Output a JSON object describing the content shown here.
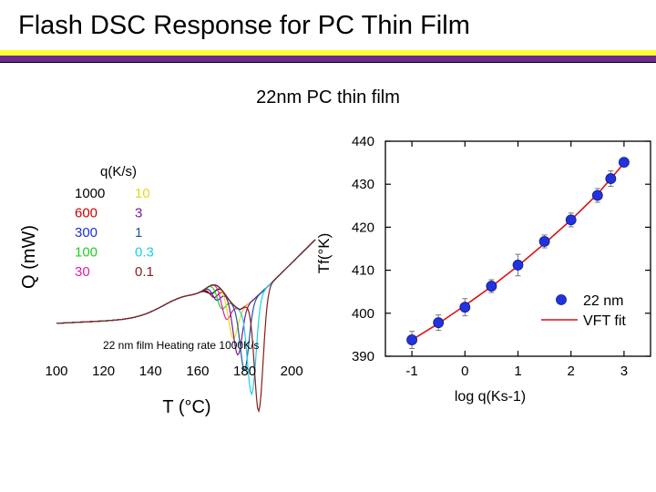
{
  "slide": {
    "title": "Flash DSC Response for PC Thin Film",
    "subtitle": "22nm PC thin film",
    "stripe_colors": [
      "#ffff33",
      "#6b2c91",
      "#000000"
    ]
  },
  "chart_data": [
    {
      "type": "line",
      "ylabel": "Q (mW)",
      "xlabel": "T (°C)",
      "xlim": [
        100,
        210
      ],
      "x_ticks": [
        "100",
        "120",
        "140",
        "160",
        "180",
        "200"
      ],
      "y_ticks": [],
      "legend_title": "q(K/s)",
      "legend": [
        {
          "name": "1000",
          "color": "#000000"
        },
        {
          "name": "600",
          "color": "#cc0000"
        },
        {
          "name": "300",
          "color": "#1a33cc"
        },
        {
          "name": "100",
          "color": "#22cc22"
        },
        {
          "name": "30",
          "color": "#e61aa3"
        },
        {
          "name": "10",
          "color": "#e6d81a"
        },
        {
          "name": "3",
          "color": "#7a1a99"
        },
        {
          "name": "1",
          "color": "#1a5a99"
        },
        {
          "name": "0.3",
          "color": "#1ad0e6"
        },
        {
          "name": "0.1",
          "color": "#8b1a1a"
        }
      ],
      "series": [
        {
          "name": "1000",
          "dip_T": 166,
          "depth": 0.04
        },
        {
          "name": "600",
          "dip_T": 167,
          "depth": 0.06
        },
        {
          "name": "300",
          "dip_T": 168,
          "depth": 0.07
        },
        {
          "name": "100",
          "dip_T": 170,
          "depth": 0.09
        },
        {
          "name": "30",
          "dip_T": 172,
          "depth": 0.11
        },
        {
          "name": "10",
          "dip_T": 175,
          "depth": 0.16
        },
        {
          "name": "3",
          "dip_T": 177,
          "depth": 0.22
        },
        {
          "name": "1",
          "dip_T": 180,
          "depth": 0.3
        },
        {
          "name": "0.3",
          "dip_T": 183,
          "depth": 0.44
        },
        {
          "name": "0.1",
          "dip_T": 186,
          "depth": 0.55
        }
      ],
      "annotation": "22 nm film Heating rate 1000K/s"
    },
    {
      "type": "scatter",
      "ylabel": "Tf(°K)",
      "xlabel": "log q(Ks-1)",
      "xlim": [
        -1.5,
        3.5
      ],
      "ylim": [
        390,
        440
      ],
      "x_ticks": [
        "-1",
        "0",
        "1",
        "2",
        "3"
      ],
      "y_ticks": [
        "390",
        "400",
        "410",
        "420",
        "430",
        "440"
      ],
      "series": [
        {
          "name": "22 nm",
          "x": [
            -1,
            -0.5,
            0,
            0.5,
            1,
            1.5,
            2,
            2.5,
            2.75,
            3
          ],
          "y": [
            393.8,
            397.8,
            401.4,
            406.3,
            411.2,
            416.7,
            421.7,
            427.4,
            431.3,
            435.1
          ],
          "err": [
            2.0,
            1.8,
            2.0,
            1.5,
            2.5,
            1.5,
            1.6,
            1.6,
            1.8,
            1.0
          ]
        },
        {
          "name": "VFT fit",
          "x": [
            -1,
            -0.5,
            0,
            0.5,
            1,
            1.5,
            2,
            2.5,
            3
          ],
          "y": [
            393.8,
            397.6,
            401.8,
            406.2,
            411.0,
            416.2,
            421.7,
            427.7,
            434.9
          ]
        }
      ],
      "legend": [
        {
          "name": "22 nm",
          "color": "#2233dd"
        },
        {
          "name": "VFT fit",
          "color": "#dd1111"
        }
      ],
      "grid": false,
      "legend_position": "bottom-right"
    }
  ]
}
